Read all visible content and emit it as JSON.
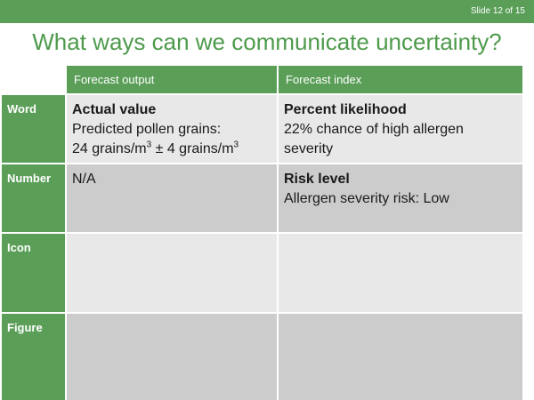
{
  "slide": {
    "number_label": "Slide 12 of 15"
  },
  "title": "What ways can we communicate uncertainty?",
  "table": {
    "columns": [
      "Forecast output",
      "Forecast index"
    ],
    "rows": [
      {
        "label": "Word",
        "cells": [
          {
            "heading": "Actual value",
            "line1": "Predicted pollen grains:",
            "line2_a": "24 grains/m",
            "sup_a": "3",
            "line2_b": " ± 4 grains/m",
            "sup_b": "3"
          },
          {
            "heading": "Percent likelihood",
            "line1": "22% chance of high allergen",
            "line2": "severity"
          }
        ]
      },
      {
        "label": "Number",
        "cells": [
          {
            "text": "N/A"
          },
          {
            "heading": "Risk level",
            "line1": "Allergen severity risk: Low"
          }
        ]
      },
      {
        "label": "Icon",
        "cells": [
          {},
          {}
        ]
      },
      {
        "label": "Figure",
        "cells": [
          {},
          {}
        ]
      }
    ]
  },
  "colors": {
    "green": "#5a9e58",
    "title_green": "#4e9a4c",
    "light_gray": "#e8e8e8",
    "dark_gray": "#cccccc"
  }
}
